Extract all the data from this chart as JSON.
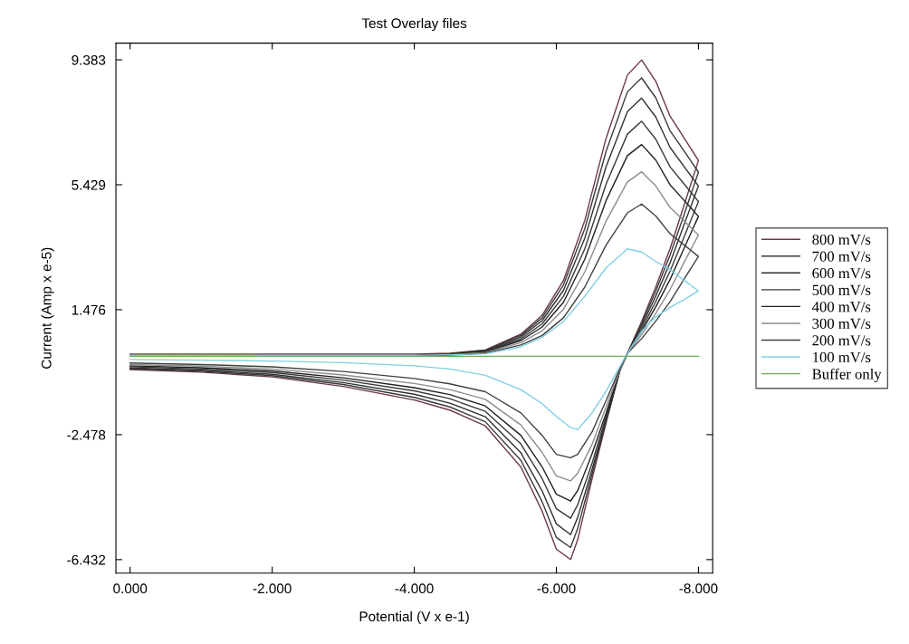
{
  "chart_data": {
    "type": "line",
    "title": "Test Overlay files",
    "xlabel": "Potential (V x e-1)",
    "ylabel": "Current (Amp x e-5)",
    "x": [
      0,
      -1,
      -2,
      -3,
      -4,
      -4.5,
      -5,
      -5.5,
      -5.8,
      -6.1,
      -6.4,
      -6.7,
      -7.0,
      -7.2,
      -7.4,
      -7.6,
      -7.8,
      -8.0,
      -7.8,
      -7.6,
      -7.4,
      -7.2,
      -7.0,
      -6.9,
      -6.7,
      -6.5,
      -6.3,
      -6.2,
      -6.0,
      -5.8,
      -5.5,
      -5.0,
      -4.5,
      -4.0,
      -3.0,
      -2.0,
      -1.0,
      0
    ],
    "series": [
      {
        "name": "800 mV/s",
        "color": "#6a3848",
        "values": [
          0.07,
          0.07,
          0.07,
          0.07,
          0.07,
          0.1,
          0.2,
          0.7,
          1.3,
          2.4,
          4.3,
          6.9,
          8.9,
          9.38,
          8.7,
          7.6,
          6.9,
          6.2,
          4.8,
          3.4,
          2.2,
          1.1,
          0.1,
          -0.4,
          -2.1,
          -3.9,
          -5.8,
          -6.43,
          -6.1,
          -4.9,
          -3.5,
          -2.2,
          -1.7,
          -1.38,
          -0.95,
          -0.65,
          -0.5,
          -0.42
        ]
      },
      {
        "name": "700 mV/s",
        "color": "#3a3a3a",
        "values": [
          0,
          0,
          0,
          0,
          0.02,
          0.08,
          0.19,
          0.66,
          1.22,
          2.26,
          4.04,
          6.49,
          8.37,
          8.81,
          8.18,
          7.14,
          6.49,
          5.83,
          4.5,
          3.2,
          2.07,
          1.03,
          0.1,
          -0.4,
          -2.05,
          -3.75,
          -5.45,
          -6.05,
          -5.73,
          -4.6,
          -3.29,
          -2.07,
          -1.6,
          -1.3,
          -0.89,
          -0.61,
          -0.47,
          -0.39
        ]
      },
      {
        "name": "600 mV/s",
        "color": "#303030",
        "values": [
          0,
          0,
          0,
          0,
          0.02,
          0.07,
          0.17,
          0.61,
          1.13,
          2.09,
          3.74,
          6.0,
          7.74,
          8.17,
          7.57,
          6.61,
          6.0,
          5.39,
          4.18,
          2.96,
          1.91,
          0.96,
          0.1,
          -0.4,
          -2.0,
          -3.6,
          -5.1,
          -5.64,
          -5.3,
          -4.26,
          -3.05,
          -1.91,
          -1.48,
          -1.2,
          -0.83,
          -0.57,
          -0.44,
          -0.37
        ]
      },
      {
        "name": "500 mV/s",
        "color": "#383838",
        "values": [
          0,
          0,
          0,
          0,
          0.02,
          0.06,
          0.16,
          0.55,
          1.03,
          1.9,
          3.4,
          5.45,
          7.03,
          7.44,
          6.87,
          6.0,
          5.45,
          4.9,
          3.79,
          2.69,
          1.74,
          0.87,
          0.1,
          -0.4,
          -1.9,
          -3.4,
          -4.7,
          -5.12,
          -4.82,
          -3.87,
          -2.77,
          -1.74,
          -1.34,
          -1.09,
          -0.75,
          -0.51,
          -0.4,
          -0.33
        ]
      },
      {
        "name": "400 mV/s",
        "color": "#202020",
        "values": [
          0,
          0,
          0,
          0,
          0.01,
          0.06,
          0.14,
          0.5,
          0.93,
          1.71,
          3.07,
          4.93,
          6.35,
          6.7,
          6.21,
          5.43,
          4.93,
          4.43,
          3.43,
          2.43,
          1.57,
          0.79,
          0.1,
          -0.4,
          -1.8,
          -3.1,
          -4.25,
          -4.58,
          -4.36,
          -3.5,
          -2.5,
          -1.57,
          -1.21,
          -0.99,
          -0.68,
          -0.46,
          -0.36,
          -0.3
        ]
      },
      {
        "name": "300 mV/s",
        "color": "#8c8c8c",
        "values": [
          0,
          0,
          0,
          0,
          0.01,
          0.05,
          0.12,
          0.43,
          0.81,
          1.49,
          2.67,
          4.28,
          5.52,
          5.84,
          5.39,
          4.71,
          4.28,
          3.84,
          2.98,
          2.11,
          1.36,
          0.68,
          0.1,
          -0.4,
          -1.6,
          -2.8,
          -3.7,
          -3.94,
          -3.78,
          -3.04,
          -2.17,
          -1.36,
          -1.05,
          -0.86,
          -0.59,
          -0.4,
          -0.31,
          -0.26
        ]
      },
      {
        "name": "200 mV/s",
        "color": "#404040",
        "values": [
          0,
          0,
          0,
          0,
          0.01,
          0.04,
          0.1,
          0.36,
          0.66,
          1.22,
          2.19,
          3.52,
          4.54,
          4.82,
          4.44,
          3.88,
          3.52,
          3.16,
          2.45,
          1.73,
          1.12,
          0.56,
          0.1,
          -0.35,
          -1.4,
          -2.4,
          -3.1,
          -3.21,
          -3.1,
          -2.5,
          -1.79,
          -1.12,
          -0.87,
          -0.7,
          -0.48,
          -0.33,
          -0.26,
          -0.21
        ]
      },
      {
        "name": "100 mV/s",
        "color": "#80d0e0",
        "values": [
          0.03,
          0.03,
          0.03,
          0.03,
          0.03,
          0.05,
          0.08,
          0.3,
          0.6,
          1.1,
          1.9,
          2.8,
          3.4,
          3.3,
          3.0,
          2.75,
          2.4,
          2.07,
          1.8,
          1.55,
          1.25,
          0.8,
          0.1,
          -0.3,
          -1.1,
          -1.8,
          -2.32,
          -2.25,
          -1.9,
          -1.5,
          -1.05,
          -0.6,
          -0.4,
          -0.3,
          -0.2,
          -0.15,
          -0.12,
          -0.1
        ]
      },
      {
        "name": "Buffer only",
        "color": "#70b050",
        "x": [
          0,
          -8
        ],
        "values": [
          0,
          0
        ]
      }
    ],
    "xlim": [
      0.2,
      -8.2
    ],
    "xticks": [
      {
        "value": 0,
        "label": "0.000"
      },
      {
        "value": -2,
        "label": "-2.000"
      },
      {
        "value": -4,
        "label": "-4.000"
      },
      {
        "value": -6,
        "label": "-6.000"
      },
      {
        "value": -8,
        "label": "-8.000"
      }
    ],
    "ylim": [
      -6.86,
      9.91
    ],
    "yticks": [
      9.383,
      5.429,
      1.476,
      -2.478,
      -6.432
    ],
    "grid": false,
    "legend": "right",
    "marker": "none",
    "line_style": "solid"
  }
}
